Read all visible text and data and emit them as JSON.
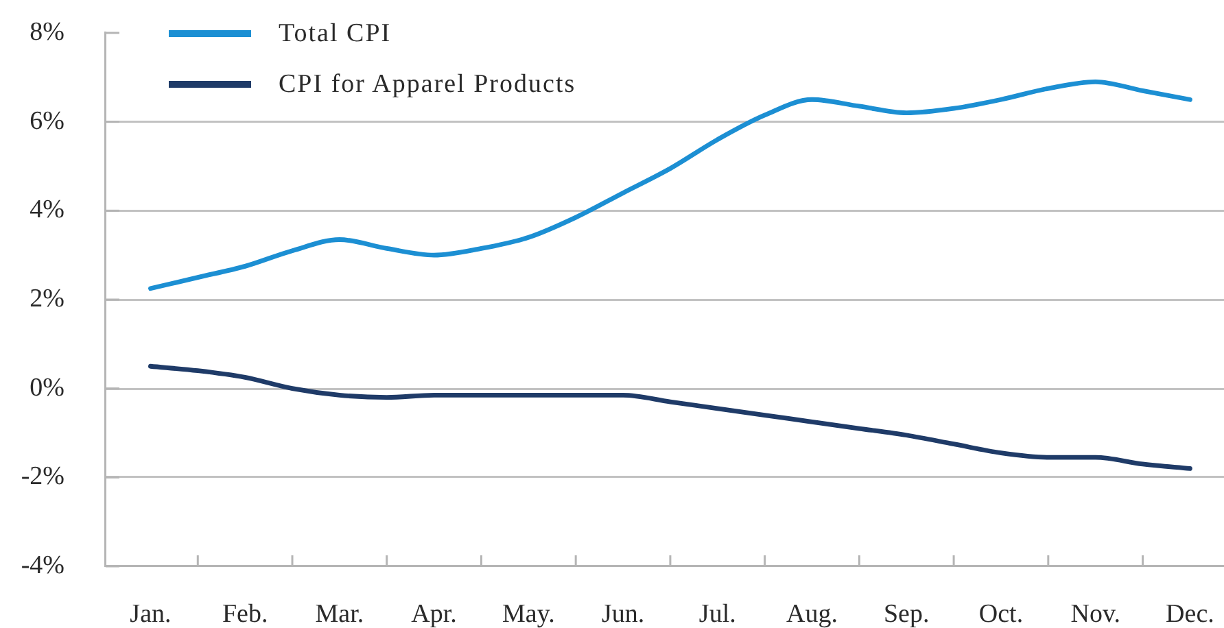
{
  "chart_data": {
    "type": "line",
    "categories": [
      "Jan.",
      null,
      "Feb.",
      null,
      "Mar.",
      null,
      "Apr.",
      null,
      "May.",
      null,
      "Jun.",
      null,
      "Jul.",
      null,
      "Aug.",
      null,
      "Sep.",
      null,
      "Oct.",
      null,
      "Nov.",
      null,
      "Dec."
    ],
    "series": [
      {
        "name": "Total CPI",
        "color": "#1c8fd3",
        "values": [
          2.25,
          2.5,
          2.75,
          3.1,
          3.35,
          3.15,
          3.0,
          3.15,
          3.4,
          3.85,
          4.4,
          4.95,
          5.6,
          6.15,
          6.5,
          6.35,
          6.2,
          6.3,
          6.5,
          6.75,
          6.9,
          6.7,
          6.5
        ]
      },
      {
        "name": "CPI for Apparel Products",
        "color": "#1f3b68",
        "values": [
          0.5,
          0.4,
          0.25,
          0.0,
          -0.15,
          -0.2,
          -0.15,
          -0.15,
          -0.15,
          -0.15,
          -0.15,
          -0.3,
          -0.45,
          -0.6,
          -0.75,
          -0.9,
          -1.05,
          -1.25,
          -1.45,
          -1.55,
          -1.55,
          -1.7,
          -1.8
        ]
      }
    ],
    "ylim": [
      -4,
      8
    ],
    "yticks": [
      {
        "value": -4,
        "label": "-4%"
      },
      {
        "value": -2,
        "label": "-2%"
      },
      {
        "value": 0,
        "label": "0%"
      },
      {
        "value": 2,
        "label": "2%"
      },
      {
        "value": 4,
        "label": "4%"
      },
      {
        "value": 6,
        "label": "6%"
      },
      {
        "value": 8,
        "label": "8%"
      }
    ],
    "grid": "y",
    "legend": "top left",
    "marker": "none",
    "line_style": "solid"
  }
}
